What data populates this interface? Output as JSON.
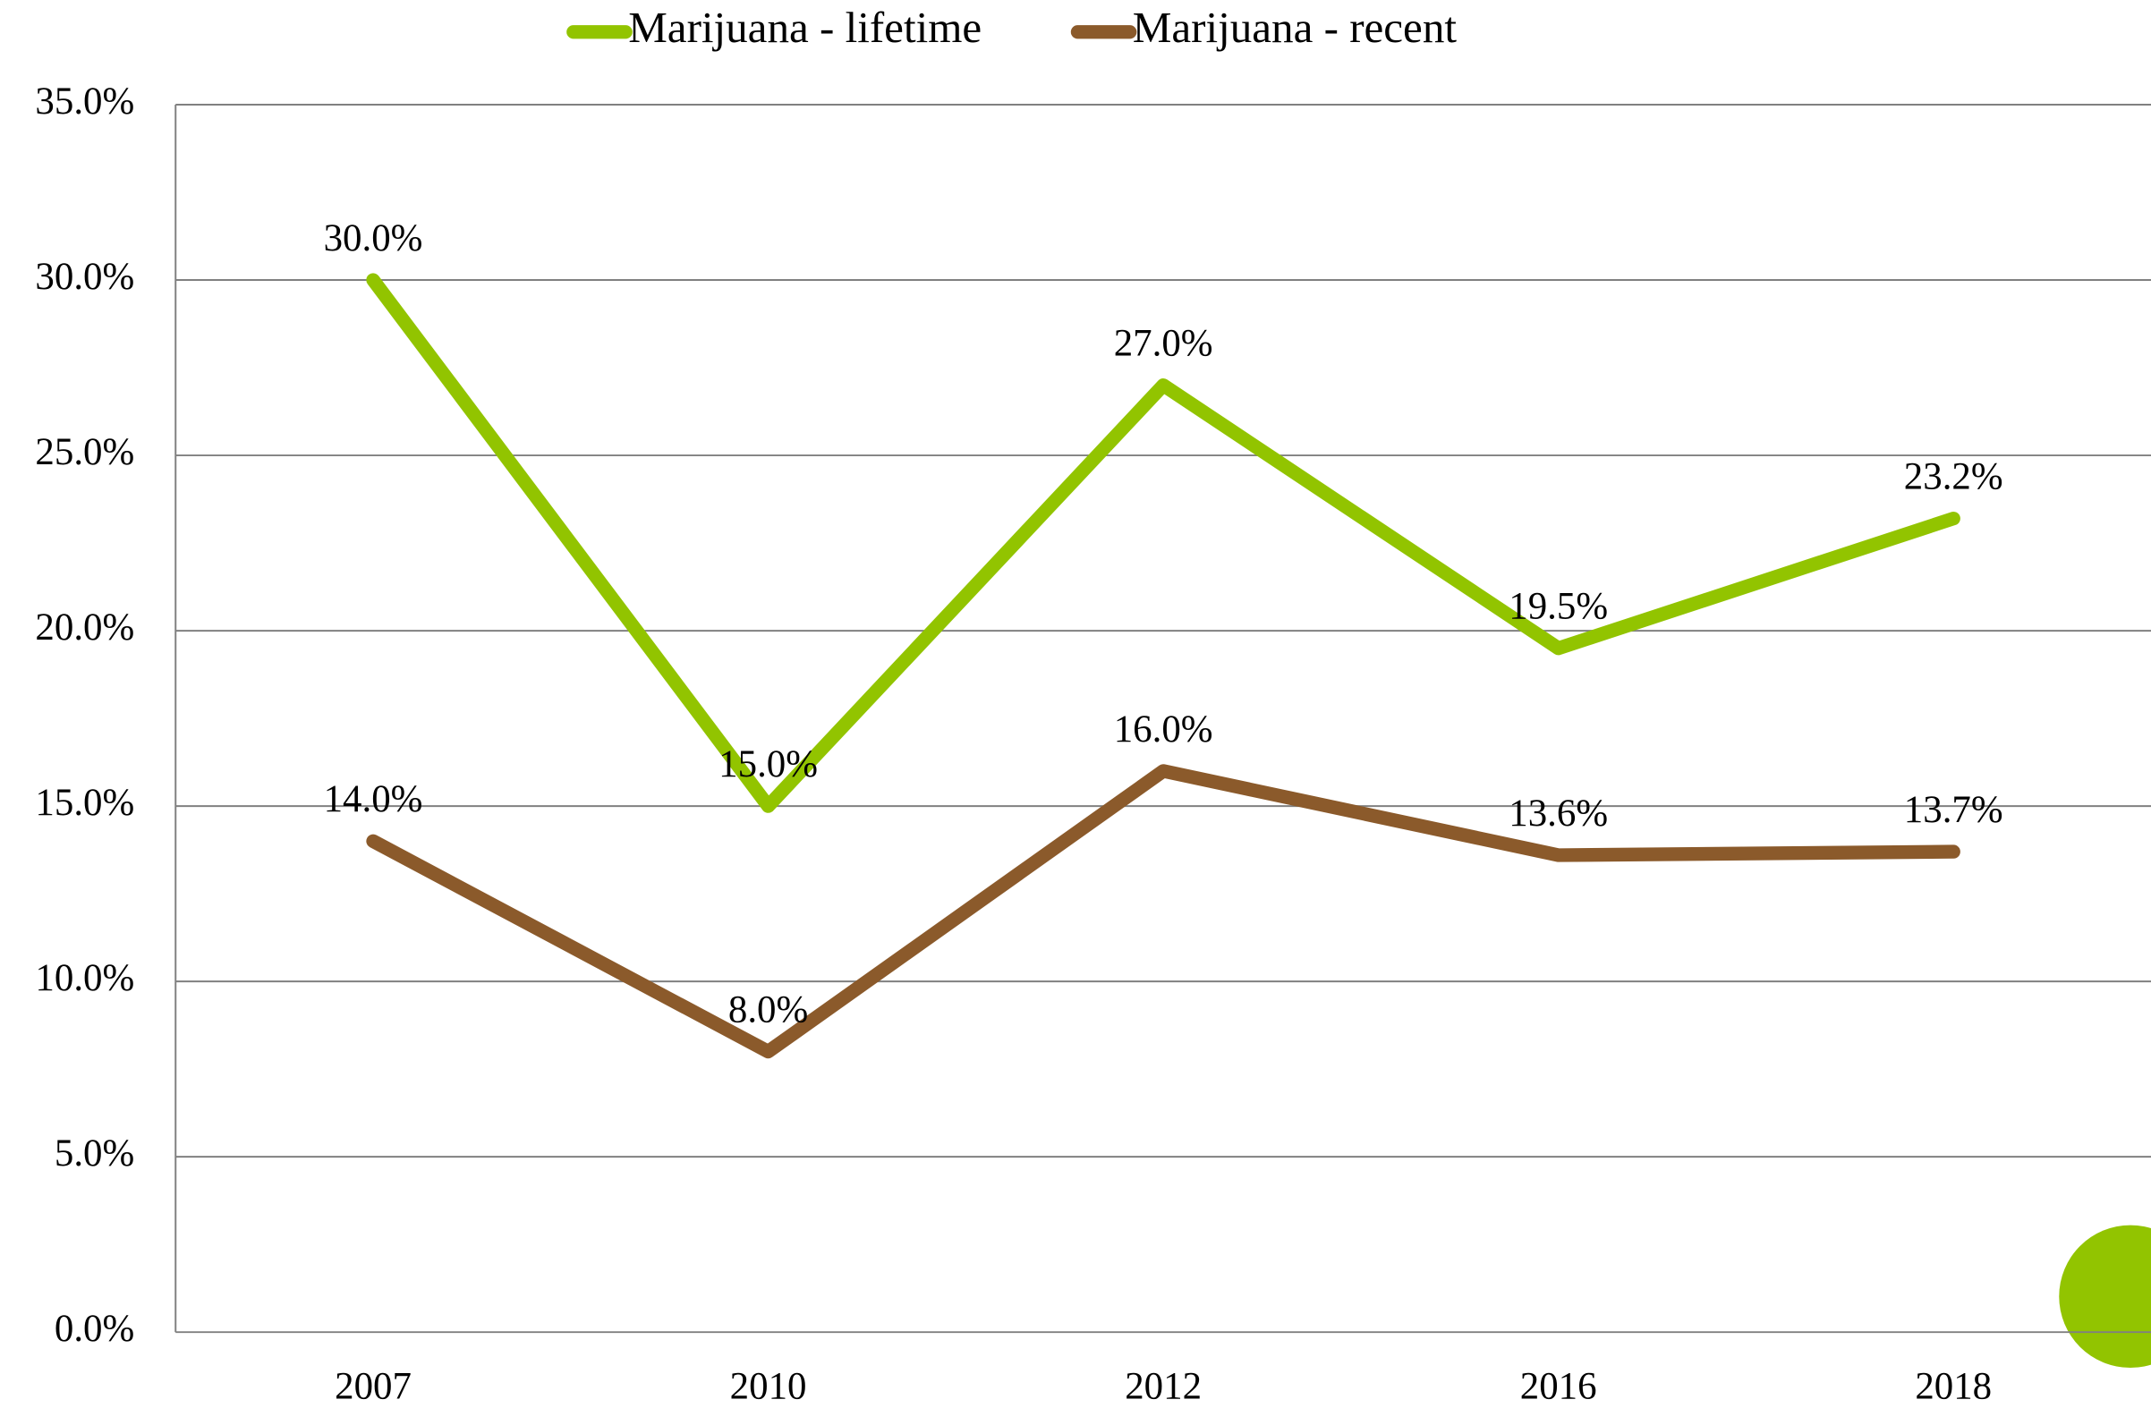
{
  "chart_data": {
    "type": "line",
    "categories": [
      "2007",
      "2010",
      "2012",
      "2016",
      "2018"
    ],
    "series": [
      {
        "name": "Marijuana - lifetime",
        "color": "#92c400",
        "values": [
          30.0,
          15.0,
          27.0,
          19.5,
          23.2
        ],
        "value_labels": [
          "30.0%",
          "15.0%",
          "27.0%",
          "19.5%",
          "23.2%"
        ]
      },
      {
        "name": "Marijuana - recent",
        "color": "#8b5a2b",
        "values": [
          14.0,
          8.0,
          16.0,
          13.6,
          13.7
        ],
        "value_labels": [
          "14.0%",
          "8.0%",
          "16.0%",
          "13.6%",
          "13.7%"
        ]
      }
    ],
    "ylim": [
      0,
      35
    ],
    "yticks": [
      {
        "value": 0,
        "label": "0.0%"
      },
      {
        "value": 5,
        "label": "5.0%"
      },
      {
        "value": 10,
        "label": "10.0%"
      },
      {
        "value": 15,
        "label": "15.0%"
      },
      {
        "value": 20,
        "label": "20.0%"
      },
      {
        "value": 25,
        "label": "25.0%"
      },
      {
        "value": 30,
        "label": "30.0%"
      },
      {
        "value": 35,
        "label": "35.0%"
      }
    ],
    "grid": true,
    "legend": "top"
  }
}
